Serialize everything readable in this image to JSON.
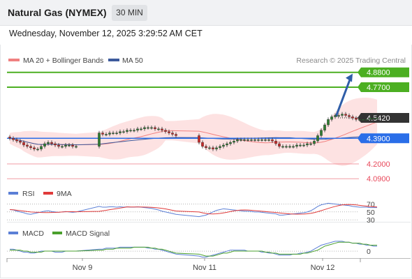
{
  "header": {
    "title": "Natural Gas (NYMEX)",
    "timeframe": "30 MIN",
    "timestamp": "Wednesday, November 12, 2025 3:29:52 AM CET"
  },
  "legend": {
    "ma20_label": "MA 20 + Bollinger Bands",
    "ma50_label": "MA 50",
    "copyright": "Research © 2025 Trading Central",
    "rsi_label": "RSI",
    "rsi_ma_label": "9MA",
    "macd_label": "MACD",
    "macd_signal_label": "MACD Signal"
  },
  "colors": {
    "bull_candle": "#2e7d32",
    "bear_candle": "#c62828",
    "ma20": "#f08080",
    "ma50": "#3d5a9c",
    "bollinger_fill": "#fde2e2",
    "resistance": "#4caf22",
    "support": "#2a6ee8",
    "pivot_arrow": "#2f5ea8",
    "weak_support": "#e8485a",
    "last_price_tag": "#333333",
    "rsi": "#5b7fd6",
    "rsi_ma": "#e03a3a",
    "macd": "#5b7fd6",
    "macd_signal": "#4aa02c"
  },
  "chart_data": {
    "type": "candlestick",
    "x_labels": [
      "Nov 9",
      "Nov 11",
      "Nov 12"
    ],
    "y_range": [
      4.06,
      4.92
    ],
    "price_levels": [
      {
        "label": "4.8800",
        "value": 4.88,
        "kind": "resistance"
      },
      {
        "label": "4.7700",
        "value": 4.77,
        "kind": "resistance"
      },
      {
        "label": "4.5420",
        "value": 4.542,
        "kind": "last_price"
      },
      {
        "label": "4.3900",
        "value": 4.39,
        "kind": "pivot"
      },
      {
        "label": "4.2000",
        "value": 4.2,
        "kind": "support"
      },
      {
        "label": "4.0900",
        "value": 4.09,
        "kind": "support"
      }
    ],
    "forecast_arrow": {
      "from": 4.55,
      "to": 4.87
    },
    "close_series": [
      4.39,
      4.38,
      4.37,
      4.36,
      4.34,
      4.33,
      4.32,
      4.31,
      4.31,
      4.33,
      4.35,
      4.36,
      4.35,
      4.34,
      4.33,
      4.33,
      4.34,
      4.34,
      4.33,
      4.33,
      4.43,
      4.42,
      4.42,
      4.43,
      4.43,
      4.43,
      4.44,
      4.44,
      4.45,
      4.45,
      4.45,
      4.46,
      4.46,
      4.47,
      4.47,
      4.47,
      4.46,
      4.46,
      4.45,
      4.44,
      4.43,
      4.42,
      4.41,
      4.36,
      4.33,
      4.32,
      4.32,
      4.31,
      4.32,
      4.33,
      4.34,
      4.35,
      4.36,
      4.37,
      4.38,
      4.38,
      4.38,
      4.38,
      4.38,
      4.38,
      4.38,
      4.38,
      4.38,
      4.38,
      4.37,
      4.35,
      4.33,
      4.33,
      4.33,
      4.33,
      4.33,
      4.34,
      4.34,
      4.34,
      4.35,
      4.35,
      4.37,
      4.41,
      4.45,
      4.49,
      4.53,
      4.55,
      4.56,
      4.56,
      4.57,
      4.56,
      4.55,
      4.54,
      4.53,
      4.53,
      4.53,
      4.53,
      4.54,
      4.54,
      4.54
    ],
    "gaps_after": [
      19,
      42
    ],
    "rsi": {
      "levels": [
        "70",
        "50",
        "30"
      ],
      "values": [
        56,
        55,
        52,
        50,
        48,
        45,
        44,
        46,
        48,
        50,
        52,
        53,
        51,
        50,
        49,
        50,
        51,
        50,
        49,
        50,
        64,
        62,
        62,
        63,
        63,
        62,
        63,
        62,
        63,
        62,
        62,
        63,
        62,
        61,
        60,
        59,
        57,
        55,
        52,
        50,
        48,
        46,
        44,
        38,
        40,
        42,
        46,
        50,
        54,
        56,
        58,
        57,
        56,
        55,
        54,
        53,
        52,
        52,
        51,
        50,
        50,
        49,
        48,
        47,
        46,
        45,
        42,
        42,
        43,
        44,
        45,
        46,
        47,
        48,
        50,
        53,
        58,
        64,
        68,
        70,
        72,
        71,
        70,
        69,
        68,
        67,
        66,
        64,
        63,
        62,
        62,
        62,
        61,
        61,
        61
      ]
    },
    "macd": {
      "zero_label": "0",
      "macd": [
        0.02,
        0.02,
        0.01,
        0.0,
        -0.01,
        -0.01,
        -0.02,
        -0.02,
        -0.01,
        0.0,
        0.0,
        0.0,
        0.0,
        -0.01,
        -0.01,
        -0.01,
        0.0,
        0.0,
        0.0,
        0.0,
        0.02,
        0.02,
        0.03,
        0.03,
        0.03,
        0.03,
        0.04,
        0.04,
        0.04,
        0.04,
        0.04,
        0.04,
        0.04,
        0.04,
        0.03,
        0.03,
        0.02,
        0.02,
        0.01,
        0.0,
        -0.01,
        -0.02,
        -0.03,
        -0.05,
        -0.06,
        -0.06,
        -0.05,
        -0.04,
        -0.03,
        -0.02,
        -0.01,
        0.0,
        0.01,
        0.01,
        0.01,
        0.01,
        0.01,
        0.0,
        0.0,
        0.0,
        0.0,
        -0.01,
        -0.01,
        -0.02,
        -0.02,
        -0.03,
        -0.04,
        -0.04,
        -0.04,
        -0.04,
        -0.03,
        -0.03,
        -0.02,
        -0.02,
        -0.01,
        0.0,
        0.02,
        0.04,
        0.06,
        0.07,
        0.08,
        0.09,
        0.1,
        0.1,
        0.1,
        0.09,
        0.09,
        0.08,
        0.08,
        0.07,
        0.07,
        0.06,
        0.06,
        0.05,
        0.05
      ],
      "signal": [
        0.01,
        0.01,
        0.01,
        0.01,
        0.0,
        0.0,
        -0.01,
        -0.01,
        -0.01,
        -0.01,
        0.0,
        0.0,
        0.0,
        0.0,
        0.0,
        0.0,
        0.0,
        0.0,
        0.0,
        0.0,
        0.01,
        0.01,
        0.02,
        0.02,
        0.02,
        0.03,
        0.03,
        0.03,
        0.03,
        0.03,
        0.04,
        0.04,
        0.04,
        0.04,
        0.04,
        0.03,
        0.03,
        0.02,
        0.02,
        0.01,
        0.0,
        -0.01,
        -0.02,
        -0.03,
        -0.04,
        -0.05,
        -0.05,
        -0.05,
        -0.04,
        -0.03,
        -0.02,
        -0.02,
        -0.01,
        0.0,
        0.0,
        0.0,
        0.0,
        0.0,
        0.0,
        0.0,
        0.0,
        0.0,
        -0.01,
        -0.01,
        -0.02,
        -0.02,
        -0.03,
        -0.03,
        -0.03,
        -0.03,
        -0.03,
        -0.03,
        -0.03,
        -0.02,
        -0.02,
        -0.01,
        0.0,
        0.01,
        0.03,
        0.05,
        0.06,
        0.07,
        0.08,
        0.09,
        0.09,
        0.09,
        0.09,
        0.08,
        0.08,
        0.08,
        0.07,
        0.07,
        0.06,
        0.06,
        0.06
      ]
    }
  }
}
